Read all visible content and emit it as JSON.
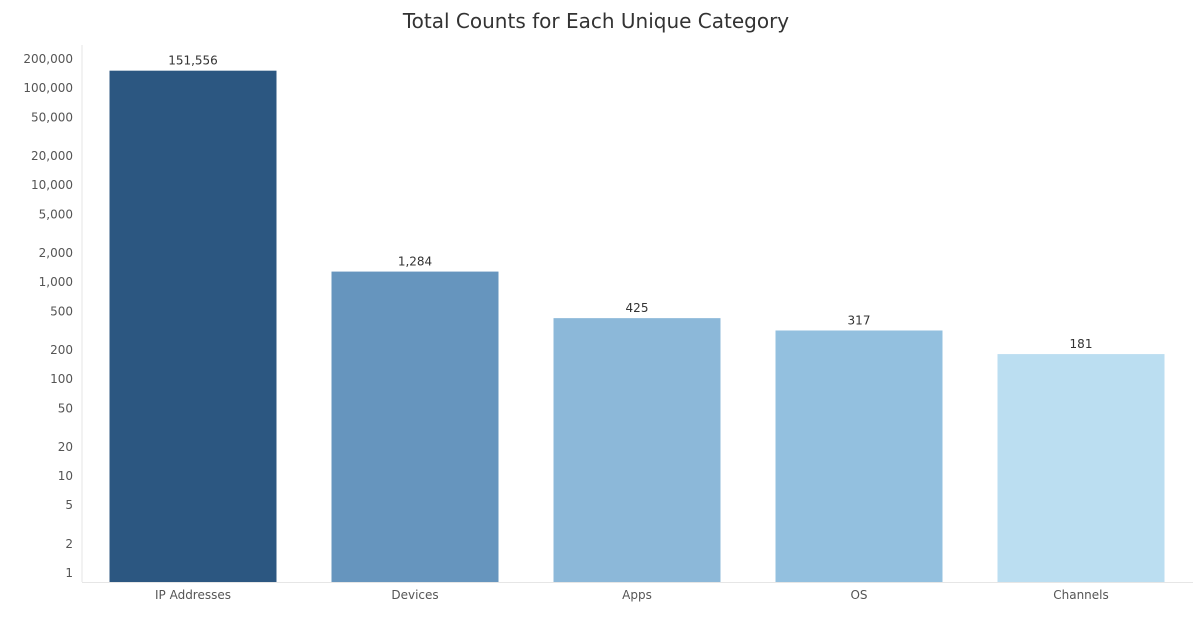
{
  "chart_data": {
    "type": "bar",
    "title": "Total Counts for Each Unique Category",
    "xlabel": "",
    "ylabel": "",
    "y_scale": "log",
    "ylim": [
      1,
      200000
    ],
    "grid": false,
    "legend": "none",
    "categories": [
      "IP Addresses",
      "Devices",
      "Apps",
      "OS",
      "Channels"
    ],
    "values": [
      151556,
      1284,
      425,
      317,
      181
    ],
    "value_labels": [
      "151,556",
      "1,284",
      "425",
      "317",
      "181"
    ],
    "bar_colors": [
      "#2c5781",
      "#6695be",
      "#8cb8d9",
      "#93c0df",
      "#bbdef1"
    ],
    "y_ticks": [
      {
        "value": 1,
        "label": "1"
      },
      {
        "value": 2,
        "label": "2"
      },
      {
        "value": 5,
        "label": "5"
      },
      {
        "value": 10,
        "label": "10"
      },
      {
        "value": 20,
        "label": "20"
      },
      {
        "value": 50,
        "label": "50"
      },
      {
        "value": 100,
        "label": "100"
      },
      {
        "value": 200,
        "label": "200"
      },
      {
        "value": 500,
        "label": "500"
      },
      {
        "value": 1000,
        "label": "1,000"
      },
      {
        "value": 2000,
        "label": "2,000"
      },
      {
        "value": 5000,
        "label": "5,000"
      },
      {
        "value": 10000,
        "label": "10,000"
      },
      {
        "value": 20000,
        "label": "20,000"
      },
      {
        "value": 50000,
        "label": "50,000"
      },
      {
        "value": 100000,
        "label": "100,000"
      },
      {
        "value": 200000,
        "label": "200,000"
      }
    ]
  }
}
